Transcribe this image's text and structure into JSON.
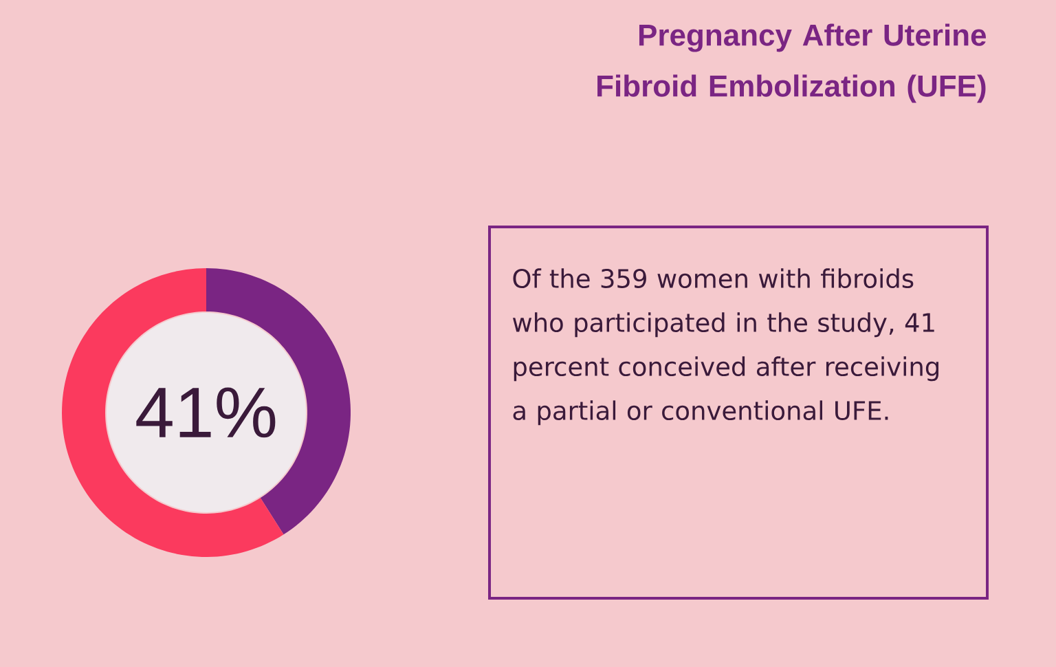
{
  "chart_data": {
    "type": "donut",
    "title": "Pregnancy After Uterine Fibroid Embolization (UFE)",
    "categories": [
      null,
      null
    ],
    "values": [
      41,
      59
    ],
    "colors": [
      "#7a2583",
      "#fb3a5e"
    ],
    "annotations": [
      "41%",
      "Of the 359 women with fibroids who participated in the study, 41 percent conceived after receiving a partial or conventional UFE."
    ]
  }
}
